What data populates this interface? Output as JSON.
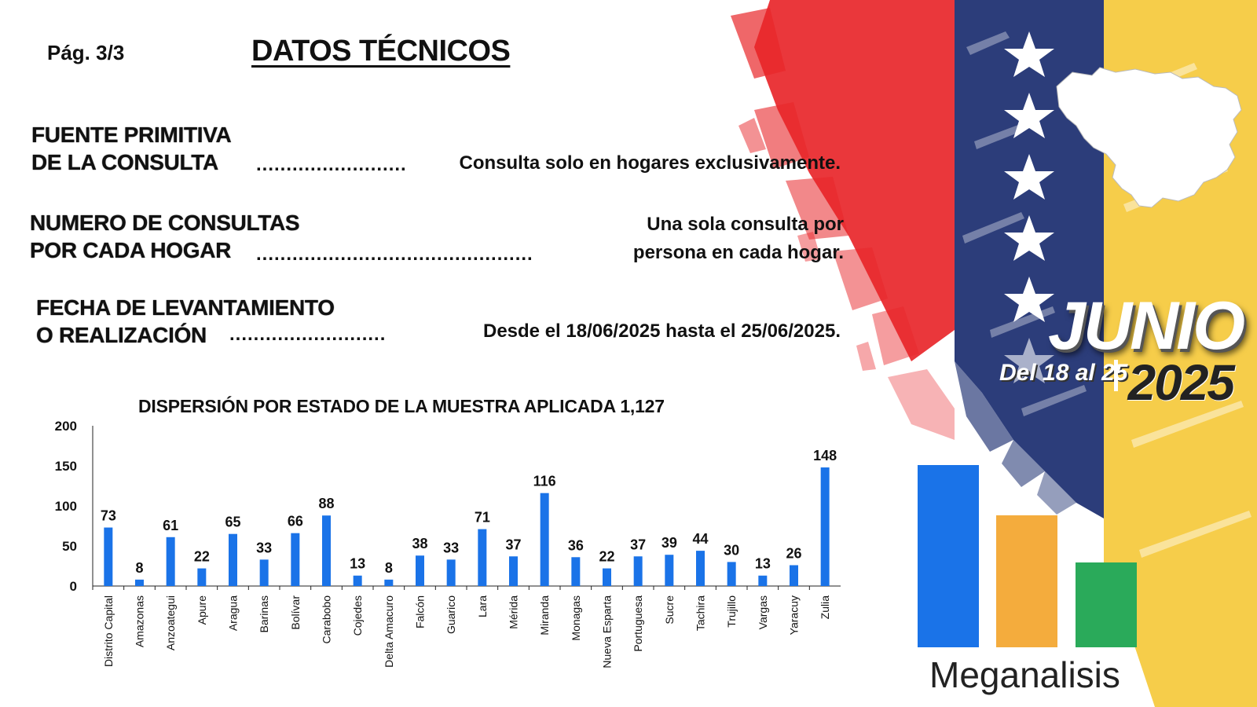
{
  "header": {
    "page": "Pág.  3/3",
    "title": "DATOS TÉCNICOS"
  },
  "rows": [
    {
      "label": "FUENTE PRIMITIVA\nDE LA CONSULTA",
      "dots": ".........................",
      "value": "Consulta solo en hogares exclusivamente."
    },
    {
      "label": "NUMERO DE CONSULTAS\nPOR CADA HOGAR",
      "dots": "..............................................",
      "value": "Una sola consulta por\npersona en cada hogar."
    },
    {
      "label": "FECHA DE LEVANTAMIENTO\nO REALIZACIÓN",
      "dots": "..........................",
      "value": "Desde el 18/06/2025 hasta el 25/06/2025."
    }
  ],
  "chart_data": {
    "type": "bar",
    "title": "DISPERSIÓN POR ESTADO DE LA MUESTRA APLICADA 1,127",
    "categories": [
      "Distrito Capital",
      "Amazonas",
      "Anzoategui",
      "Apure",
      "Aragua",
      "Barinas",
      "Bolívar",
      "Carabobo",
      "Cojedes",
      "Delta Amacuro",
      "Falcón",
      "Guarico",
      "Lara",
      "Mérida",
      "Miranda",
      "Monagas",
      "Nueva Esparta",
      "Portuguesa",
      "Sucre",
      "Tachira",
      "Trujillo",
      "Vargas",
      "Yaracuy",
      "Zulia"
    ],
    "values": [
      73,
      8,
      61,
      22,
      65,
      33,
      66,
      88,
      13,
      8,
      38,
      33,
      71,
      37,
      116,
      36,
      22,
      37,
      39,
      44,
      30,
      13,
      26,
      148
    ],
    "ylim": [
      0,
      200
    ],
    "yticks": [
      0,
      50,
      100,
      150,
      200
    ],
    "bar_color": "#1a73e8",
    "grid": false,
    "legend": "none"
  },
  "badge": {
    "month": "JUNIO",
    "range": "Del 18 al 25",
    "year": "2025"
  },
  "logo": {
    "name": "Meganalisis",
    "colors": [
      "#1a73e8",
      "#f4ac3d",
      "#2aaa5a"
    ]
  },
  "flag_colors": {
    "red": "#e8262a",
    "blue": "#2c3d7a",
    "yellow": "#f6cd4a"
  }
}
